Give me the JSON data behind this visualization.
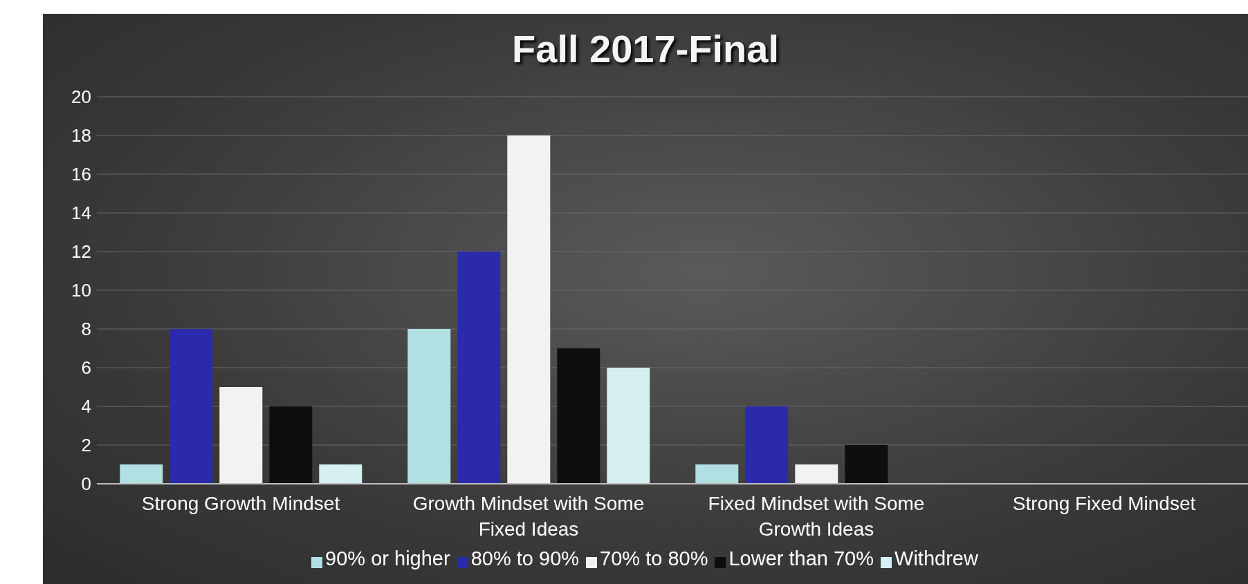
{
  "chart_data": {
    "type": "bar",
    "title": "Fall 2017-Final",
    "categories": [
      "Strong Growth Mindset",
      "Growth Mindset with Some Fixed Ideas",
      "Fixed Mindset with Some Growth Ideas",
      "Strong Fixed Mindset"
    ],
    "series": [
      {
        "name": "90% or higher",
        "color": "#b2e0e2",
        "values": [
          1,
          8,
          1,
          0
        ]
      },
      {
        "name": "80% to 90%",
        "color": "#2a2aaa",
        "values": [
          8,
          12,
          4,
          0
        ]
      },
      {
        "name": "70% to 80%",
        "color": "#f2f2f2",
        "values": [
          5,
          18,
          1,
          0
        ]
      },
      {
        "name": "Lower than 70%",
        "color": "#0e0e0e",
        "values": [
          4,
          7,
          2,
          0
        ]
      },
      {
        "name": "Withdrew",
        "color": "#d6eff0",
        "values": [
          1,
          6,
          0,
          0
        ]
      }
    ],
    "ylim": [
      0,
      20
    ],
    "yticks": [
      0,
      2,
      4,
      6,
      8,
      10,
      12,
      14,
      16,
      18,
      20
    ],
    "grid": "y",
    "legend": "bottom"
  }
}
